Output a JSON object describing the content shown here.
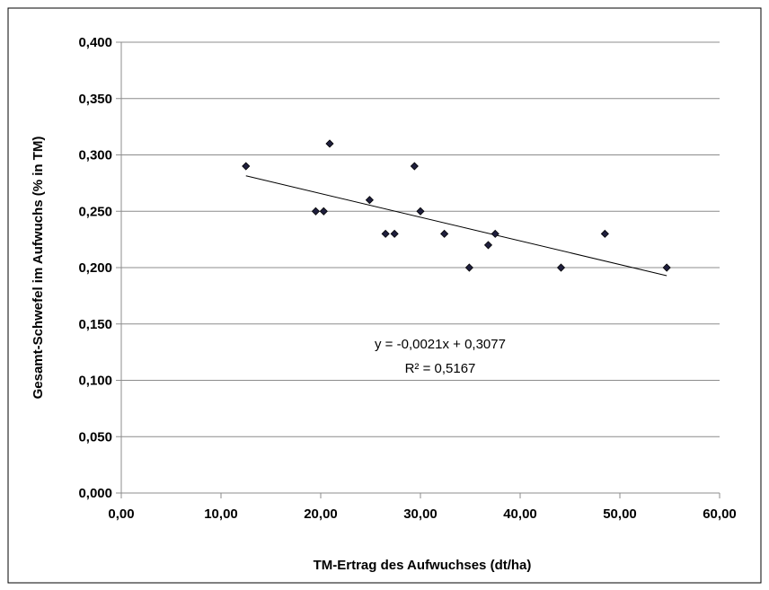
{
  "chart_data": {
    "type": "scatter",
    "title": "",
    "xlabel": "TM-Ertrag des Aufwuchses (dt/ha)",
    "ylabel": "Gesamt-Schwefel im Aufwuchs (% in  TM)",
    "xlim": [
      0,
      60
    ],
    "ylim": [
      0,
      0.4
    ],
    "x_ticks": [
      "0,00",
      "10,00",
      "20,00",
      "30,00",
      "40,00",
      "50,00",
      "60,00"
    ],
    "y_ticks": [
      "0,000",
      "0,050",
      "0,100",
      "0,150",
      "0,200",
      "0,250",
      "0,300",
      "0,350",
      "0,400"
    ],
    "grid": "horizontal",
    "legend": "none",
    "marker_color": "#1f1f3d",
    "points": [
      {
        "x": 12.5,
        "y": 0.29
      },
      {
        "x": 19.5,
        "y": 0.25
      },
      {
        "x": 20.3,
        "y": 0.25
      },
      {
        "x": 20.9,
        "y": 0.31
      },
      {
        "x": 24.9,
        "y": 0.26
      },
      {
        "x": 26.5,
        "y": 0.23
      },
      {
        "x": 27.4,
        "y": 0.23
      },
      {
        "x": 29.4,
        "y": 0.29
      },
      {
        "x": 30.0,
        "y": 0.25
      },
      {
        "x": 32.4,
        "y": 0.23
      },
      {
        "x": 34.9,
        "y": 0.2
      },
      {
        "x": 36.8,
        "y": 0.22
      },
      {
        "x": 37.5,
        "y": 0.23
      },
      {
        "x": 44.1,
        "y": 0.2
      },
      {
        "x": 48.5,
        "y": 0.23
      },
      {
        "x": 54.7,
        "y": 0.2
      }
    ],
    "trendline": {
      "type": "linear",
      "slope": -0.0021,
      "intercept": 0.3077,
      "x_range": [
        12.5,
        54.7
      ],
      "equation": "y = -0,0021x + 0,3077",
      "r_squared": "R² = 0,5167"
    }
  }
}
